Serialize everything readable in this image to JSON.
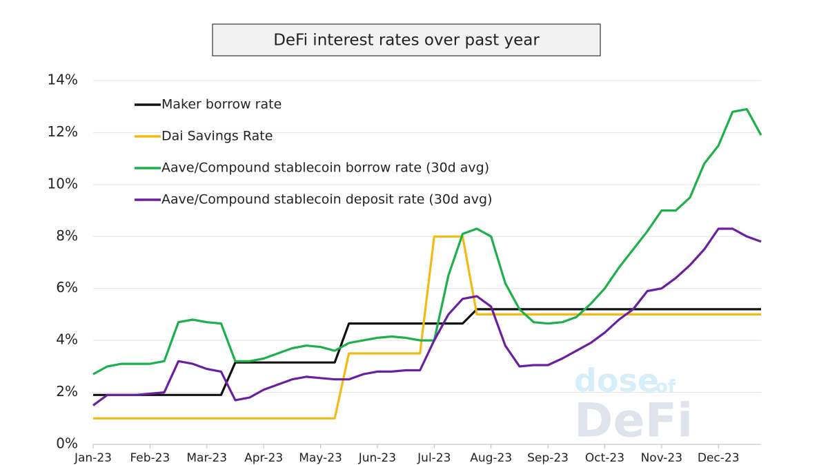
{
  "chart_data": {
    "type": "line",
    "title": "DeFi interest rates over past year",
    "categories": [
      "Jan-23",
      null,
      null,
      null,
      "Feb-23",
      null,
      null,
      null,
      "Mar-23",
      null,
      null,
      null,
      "Apr-23",
      null,
      null,
      null,
      "May-23",
      null,
      null,
      null,
      "Jun-23",
      null,
      null,
      null,
      "Jul-23",
      null,
      null,
      null,
      "Aug-23",
      null,
      null,
      null,
      "Sep-23",
      null,
      null,
      null,
      "Oct-23",
      null,
      null,
      null,
      "Nov-23",
      null,
      null,
      null,
      "Dec-23",
      null,
      null,
      null
    ],
    "series": [
      {
        "name": "Maker borrow rate",
        "color": "#111111",
        "values": [
          1.9,
          1.9,
          1.9,
          1.9,
          1.9,
          1.9,
          1.9,
          1.9,
          1.9,
          1.9,
          3.15,
          3.15,
          3.15,
          3.15,
          3.15,
          3.15,
          3.15,
          3.15,
          4.65,
          4.65,
          4.65,
          4.65,
          4.65,
          4.65,
          4.65,
          4.65,
          4.65,
          5.2,
          5.2,
          5.2,
          5.2,
          5.2,
          5.2,
          5.2,
          5.2,
          5.2,
          5.2,
          5.2,
          5.2,
          5.2,
          5.2,
          5.2,
          5.2,
          5.2,
          5.2,
          5.2,
          5.2,
          5.2
        ]
      },
      {
        "name": "Dai Savings Rate",
        "color": "#f5b914",
        "values": [
          1,
          1,
          1,
          1,
          1,
          1,
          1,
          1,
          1,
          1,
          1,
          1,
          1,
          1,
          1,
          1,
          1,
          1,
          3.5,
          3.5,
          3.5,
          3.5,
          3.5,
          3.5,
          8,
          8,
          8,
          5,
          5,
          5,
          5,
          5,
          5,
          5,
          5,
          5,
          5,
          5,
          5,
          5,
          5,
          5,
          5,
          5,
          5,
          5,
          5,
          5
        ]
      },
      {
        "name": "Aave/Compound stablecoin borrow rate (30d avg)",
        "color": "#1db04a",
        "values": [
          2.7,
          3.0,
          3.1,
          3.1,
          3.1,
          3.2,
          4.7,
          4.8,
          4.7,
          4.65,
          3.2,
          3.2,
          3.3,
          3.5,
          3.7,
          3.8,
          3.75,
          3.6,
          3.9,
          4.0,
          4.1,
          4.15,
          4.1,
          4.0,
          4.0,
          6.5,
          8.1,
          8.3,
          8.0,
          6.2,
          5.2,
          4.7,
          4.65,
          4.7,
          4.9,
          5.4,
          6.0,
          6.8,
          7.5,
          8.2,
          9.0,
          9.0,
          9.5,
          10.8,
          11.5,
          12.8,
          12.9,
          11.9
        ]
      },
      {
        "name": "Aave/Compound stablecoin deposit rate (30d avg)",
        "color": "#6a1fa0",
        "values": [
          1.5,
          1.9,
          1.9,
          1.9,
          1.95,
          2.0,
          3.2,
          3.1,
          2.9,
          2.8,
          1.7,
          1.8,
          2.1,
          2.3,
          2.5,
          2.6,
          2.55,
          2.5,
          2.5,
          2.7,
          2.8,
          2.8,
          2.85,
          2.85,
          4.0,
          5.0,
          5.6,
          5.7,
          5.3,
          3.8,
          3.0,
          3.05,
          3.05,
          3.3,
          3.6,
          3.9,
          4.3,
          4.8,
          5.2,
          5.9,
          6.0,
          6.4,
          6.9,
          7.5,
          8.3,
          8.3,
          8.0,
          7.8
        ]
      }
    ],
    "ylim": [
      0,
      14
    ],
    "yticks": [
      {
        "value": 0,
        "label": "0%"
      },
      {
        "value": 2,
        "label": "2%"
      },
      {
        "value": 4,
        "label": "4%"
      },
      {
        "value": 6,
        "label": "6%"
      },
      {
        "value": 8,
        "label": "8%"
      },
      {
        "value": 10,
        "label": "10%"
      },
      {
        "value": 12,
        "label": "12%"
      },
      {
        "value": 14,
        "label": "14%"
      }
    ],
    "grid": true,
    "legend": "top-left",
    "watermark": [
      "dose",
      "of",
      "DeFi"
    ]
  }
}
